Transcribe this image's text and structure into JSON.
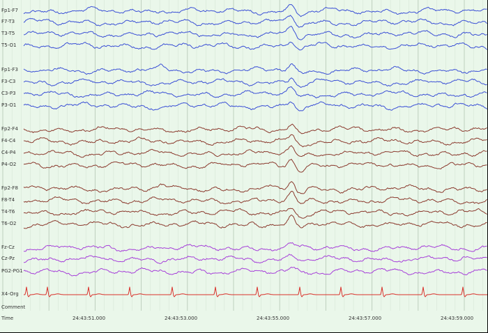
{
  "channels": [
    {
      "label": "Fp1-F7",
      "color": "#3a4fd6",
      "group": "left-temporal"
    },
    {
      "label": "F7-T3",
      "color": "#3a4fd6",
      "group": "left-temporal"
    },
    {
      "label": "T3-T5",
      "color": "#3a4fd6",
      "group": "left-temporal"
    },
    {
      "label": "T5-O1",
      "color": "#3a4fd6",
      "group": "left-temporal"
    },
    {
      "label": "Fp1-F3",
      "color": "#3a4fd6",
      "group": "left-parasagittal"
    },
    {
      "label": "F3-C3",
      "color": "#3a4fd6",
      "group": "left-parasagittal"
    },
    {
      "label": "C3-P3",
      "color": "#3a4fd6",
      "group": "left-parasagittal"
    },
    {
      "label": "P3-O1",
      "color": "#3a4fd6",
      "group": "left-parasagittal"
    },
    {
      "label": "Fp2-F4",
      "color": "#8b3a2e",
      "group": "right-parasagittal"
    },
    {
      "label": "F4-C4",
      "color": "#8b3a2e",
      "group": "right-parasagittal"
    },
    {
      "label": "C4-P4",
      "color": "#8b3a2e",
      "group": "right-parasagittal"
    },
    {
      "label": "P4-O2",
      "color": "#8b3a2e",
      "group": "right-parasagittal"
    },
    {
      "label": "Fp2-F8",
      "color": "#8b3a2e",
      "group": "right-temporal"
    },
    {
      "label": "F8-T4",
      "color": "#8b3a2e",
      "group": "right-temporal"
    },
    {
      "label": "T4-T6",
      "color": "#8b3a2e",
      "group": "right-temporal"
    },
    {
      "label": "T6-O2",
      "color": "#8b3a2e",
      "group": "right-temporal"
    },
    {
      "label": "Fz-Cz",
      "color": "#a63fd9",
      "group": "midline"
    },
    {
      "label": "Cz-Pz",
      "color": "#a63fd9",
      "group": "midline"
    },
    {
      "label": "PG2-PG1",
      "color": "#a63fd9",
      "group": "midline"
    },
    {
      "label": "X4-Org",
      "color": "#d9302a",
      "group": "ecg"
    }
  ],
  "comment_label": "Comment",
  "time_label": "Time",
  "timestamps": [
    "24:43:51.000",
    "24:43:53.000",
    "24:43:55.000",
    "24:43:57.000",
    "24:43:59.000"
  ],
  "colors": {
    "background": "#eaf7ea",
    "grid_major": "#b9cbb9",
    "grid_minor": "#d6e6d6",
    "left_channels": "#3a4fd6",
    "right_channels": "#8b3a2e",
    "midline_channels": "#a63fd9",
    "ecg_channel": "#d9302a",
    "text": "#333333"
  }
}
